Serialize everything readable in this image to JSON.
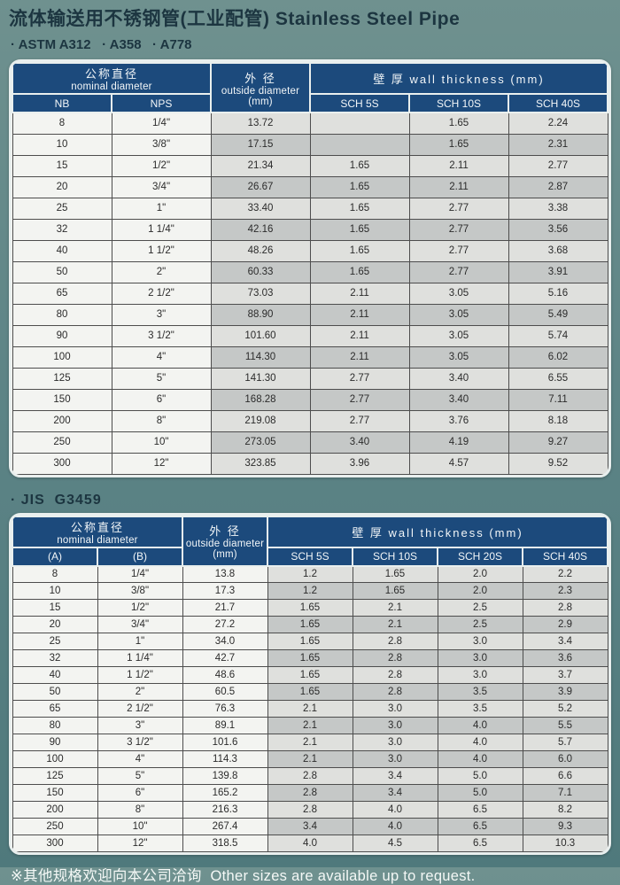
{
  "page": {
    "title": "流体输送用不锈钢管(工业配管) Stainless Steel Pipe",
    "standards_line": "· ASTM A312   · A358   · A778",
    "footer": "※其他规格欢迎向本公司洽询  Other sizes are available up to request."
  },
  "colors": {
    "page_bg_top": "#6f918f",
    "page_bg_bottom": "#4f797c",
    "header_navy": "#1c4a7c",
    "title_ink": "#1c3540",
    "cell_white": "#f3f4f1",
    "cell_light": "#dfe0dd",
    "cell_dark": "#c5c8c7",
    "grid_line": "#4d4d4d",
    "table_border_white": "#e9efee",
    "footer_text": "#f4f8f6"
  },
  "table_astm": {
    "header": {
      "nominal_zh": "公称直径",
      "nominal_en": "nominal diameter",
      "od_zh": "外 径",
      "od_en": "outside diameter",
      "od_unit": "(mm)",
      "wall": "壁 厚 wall thickness  (mm)",
      "sub_cols": [
        "NB",
        "NPS"
      ],
      "sch_cols": [
        "SCH 5S",
        "SCH 10S",
        "SCH 40S"
      ]
    },
    "rows": [
      [
        "8",
        "1/4\"",
        "13.72",
        "",
        "1.65",
        "2.24"
      ],
      [
        "10",
        "3/8\"",
        "17.15",
        "",
        "1.65",
        "2.31"
      ],
      [
        "15",
        "1/2\"",
        "21.34",
        "1.65",
        "2.11",
        "2.77"
      ],
      [
        "20",
        "3/4\"",
        "26.67",
        "1.65",
        "2.11",
        "2.87"
      ],
      [
        "25",
        "1\"",
        "33.40",
        "1.65",
        "2.77",
        "3.38"
      ],
      [
        "32",
        "1 1/4\"",
        "42.16",
        "1.65",
        "2.77",
        "3.56"
      ],
      [
        "40",
        "1 1/2\"",
        "48.26",
        "1.65",
        "2.77",
        "3.68"
      ],
      [
        "50",
        "2\"",
        "60.33",
        "1.65",
        "2.77",
        "3.91"
      ],
      [
        "65",
        "2 1/2\"",
        "73.03",
        "2.11",
        "3.05",
        "5.16"
      ],
      [
        "80",
        "3\"",
        "88.90",
        "2.11",
        "3.05",
        "5.49"
      ],
      [
        "90",
        "3 1/2\"",
        "101.60",
        "2.11",
        "3.05",
        "5.74"
      ],
      [
        "100",
        "4\"",
        "114.30",
        "2.11",
        "3.05",
        "6.02"
      ],
      [
        "125",
        "5\"",
        "141.30",
        "2.77",
        "3.40",
        "6.55"
      ],
      [
        "150",
        "6\"",
        "168.28",
        "2.77",
        "3.40",
        "7.11"
      ],
      [
        "200",
        "8\"",
        "219.08",
        "2.77",
        "3.76",
        "8.18"
      ],
      [
        "250",
        "10\"",
        "273.05",
        "3.40",
        "4.19",
        "9.27"
      ],
      [
        "300",
        "12\"",
        "323.85",
        "3.96",
        "4.57",
        "9.52"
      ]
    ]
  },
  "table_jis": {
    "section_label": "· JIS  G3459",
    "header": {
      "nominal_zh": "公称直径",
      "nominal_en": "nominal diameter",
      "od_zh": "外 径",
      "od_en": "outside diameter",
      "od_unit": "(mm)",
      "wall": "壁 厚 wall thickness  (mm)",
      "sub_cols": [
        "(A)",
        "(B)"
      ],
      "sch_cols": [
        "SCH 5S",
        "SCH 10S",
        "SCH 20S",
        "SCH 40S"
      ]
    },
    "rows": [
      [
        "8",
        "1/4\"",
        "13.8",
        "1.2",
        "1.65",
        "2.0",
        "2.2"
      ],
      [
        "10",
        "3/8\"",
        "17.3",
        "1.2",
        "1.65",
        "2.0",
        "2.3"
      ],
      [
        "15",
        "1/2\"",
        "21.7",
        "1.65",
        "2.1",
        "2.5",
        "2.8"
      ],
      [
        "20",
        "3/4\"",
        "27.2",
        "1.65",
        "2.1",
        "2.5",
        "2.9"
      ],
      [
        "25",
        "1\"",
        "34.0",
        "1.65",
        "2.8",
        "3.0",
        "3.4"
      ],
      [
        "32",
        "1 1/4\"",
        "42.7",
        "1.65",
        "2.8",
        "3.0",
        "3.6"
      ],
      [
        "40",
        "1 1/2\"",
        "48.6",
        "1.65",
        "2.8",
        "3.0",
        "3.7"
      ],
      [
        "50",
        "2\"",
        "60.5",
        "1.65",
        "2.8",
        "3.5",
        "3.9"
      ],
      [
        "65",
        "2 1/2\"",
        "76.3",
        "2.1",
        "3.0",
        "3.5",
        "5.2"
      ],
      [
        "80",
        "3\"",
        "89.1",
        "2.1",
        "3.0",
        "4.0",
        "5.5"
      ],
      [
        "90",
        "3 1/2\"",
        "101.6",
        "2.1",
        "3.0",
        "4.0",
        "5.7"
      ],
      [
        "100",
        "4\"",
        "114.3",
        "2.1",
        "3.0",
        "4.0",
        "6.0"
      ],
      [
        "125",
        "5\"",
        "139.8",
        "2.8",
        "3.4",
        "5.0",
        "6.6"
      ],
      [
        "150",
        "6\"",
        "165.2",
        "2.8",
        "3.4",
        "5.0",
        "7.1"
      ],
      [
        "200",
        "8\"",
        "216.3",
        "2.8",
        "4.0",
        "6.5",
        "8.2"
      ],
      [
        "250",
        "10\"",
        "267.4",
        "3.4",
        "4.0",
        "6.5",
        "9.3"
      ],
      [
        "300",
        "12\"",
        "318.5",
        "4.0",
        "4.5",
        "6.5",
        "10.3"
      ]
    ]
  }
}
